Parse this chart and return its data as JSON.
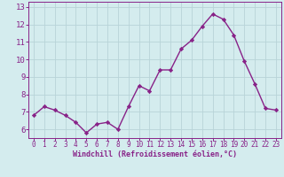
{
  "x": [
    0,
    1,
    2,
    3,
    4,
    5,
    6,
    7,
    8,
    9,
    10,
    11,
    12,
    13,
    14,
    15,
    16,
    17,
    18,
    19,
    20,
    21,
    22,
    23
  ],
  "y": [
    6.8,
    7.3,
    7.1,
    6.8,
    6.4,
    5.8,
    6.3,
    6.4,
    6.0,
    7.3,
    8.5,
    8.2,
    9.4,
    9.4,
    10.6,
    11.1,
    11.9,
    12.6,
    12.3,
    11.4,
    9.9,
    8.6,
    7.2,
    7.1
  ],
  "line_color": "#882288",
  "marker": "D",
  "marker_size": 2.2,
  "bg_color": "#d4ecee",
  "grid_color": "#b8d4d8",
  "xlabel": "Windchill (Refroidissement éolien,°C)",
  "xlabel_color": "#882288",
  "tick_color": "#882288",
  "spine_color": "#882288",
  "ylim": [
    5.5,
    13.3
  ],
  "xlim": [
    -0.5,
    23.5
  ],
  "yticks": [
    6,
    7,
    8,
    9,
    10,
    11,
    12,
    13
  ],
  "xticks": [
    0,
    1,
    2,
    3,
    4,
    5,
    6,
    7,
    8,
    9,
    10,
    11,
    12,
    13,
    14,
    15,
    16,
    17,
    18,
    19,
    20,
    21,
    22,
    23
  ],
  "line_width": 1.0,
  "tick_fontsize": 5.5,
  "xlabel_fontsize": 6.0
}
